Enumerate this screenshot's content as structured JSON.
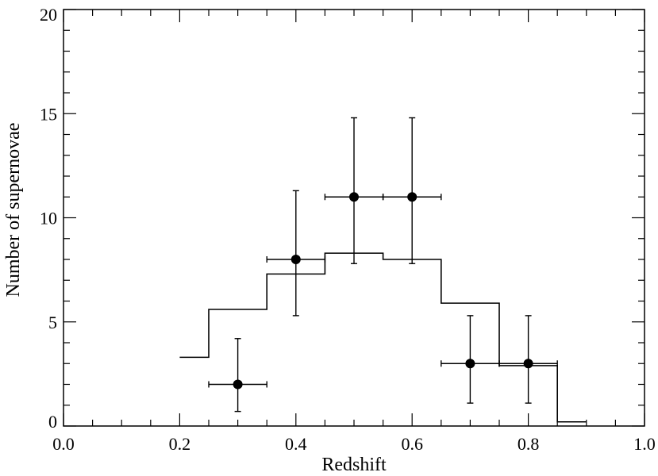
{
  "chart_data": {
    "type": "scatter",
    "title": "",
    "xlabel": "Redshift",
    "ylabel": "Number of supernovae",
    "xlim": [
      0.0,
      1.0
    ],
    "ylim": [
      0,
      20
    ],
    "xticks": [
      0.0,
      0.2,
      0.4,
      0.6,
      0.8,
      1.0
    ],
    "xtick_labels": [
      "0.0",
      "0.2",
      "0.4",
      "0.6",
      "0.8",
      "1.0"
    ],
    "yticks": [
      0,
      5,
      10,
      15,
      20
    ],
    "ytick_labels": [
      "0",
      "5",
      "10",
      "15",
      "20"
    ],
    "grid": false,
    "series": [
      {
        "type": "step",
        "edges": [
          0.2,
          0.25,
          0.35,
          0.45,
          0.55,
          0.65,
          0.75,
          0.85,
          0.9
        ],
        "values": [
          3.3,
          5.6,
          7.3,
          8.3,
          8.0,
          5.9,
          2.9,
          0.2
        ]
      },
      {
        "type": "errorbar",
        "points": [
          {
            "x": 0.3,
            "y": 2,
            "xerr": 0.05,
            "ylow": 0.7,
            "yhigh": 4.2
          },
          {
            "x": 0.4,
            "y": 8,
            "xerr": 0.05,
            "ylow": 5.3,
            "yhigh": 11.3
          },
          {
            "x": 0.5,
            "y": 11,
            "xerr": 0.05,
            "ylow": 7.8,
            "yhigh": 14.8
          },
          {
            "x": 0.6,
            "y": 11,
            "xerr": 0.05,
            "ylow": 7.8,
            "yhigh": 14.8
          },
          {
            "x": 0.7,
            "y": 3,
            "xerr": 0.05,
            "ylow": 1.1,
            "yhigh": 5.3
          },
          {
            "x": 0.8,
            "y": 3,
            "xerr": 0.05,
            "ylow": 1.1,
            "yhigh": 5.3
          }
        ]
      }
    ]
  }
}
